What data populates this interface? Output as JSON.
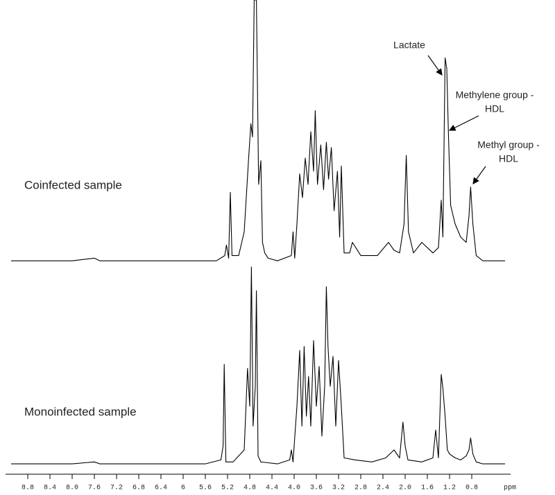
{
  "chart_data": [
    {
      "type": "line",
      "title": "Coinfected sample",
      "xlim": [
        9.2,
        0.1
      ],
      "ylim": [
        0,
        100
      ],
      "series": [
        {
          "color": "#000000",
          "x": [
            9.1,
            8.0,
            7.6,
            7.5,
            6.8,
            6.0,
            5.4,
            5.25,
            5.22,
            5.18,
            5.15,
            5.12,
            5.0,
            4.9,
            4.82,
            4.78,
            4.75,
            4.72,
            4.68,
            4.64,
            4.6,
            4.57,
            4.53,
            4.5,
            4.47,
            4.3,
            4.05,
            4.02,
            3.99,
            3.95,
            3.9,
            3.85,
            3.8,
            3.75,
            3.7,
            3.65,
            3.62,
            3.58,
            3.52,
            3.47,
            3.42,
            3.38,
            3.33,
            3.28,
            3.22,
            3.18,
            3.15,
            3.1,
            3.0,
            2.95,
            2.8,
            2.5,
            2.3,
            2.2,
            2.1,
            2.02,
            1.98,
            1.94,
            1.85,
            1.7,
            1.5,
            1.4,
            1.35,
            1.32,
            1.28,
            1.25,
            1.22,
            1.18,
            1.1,
            1.0,
            0.9,
            0.85,
            0.82,
            0.78,
            0.72,
            0.6,
            0.2
          ],
          "values": [
            1,
            1,
            2,
            1,
            1,
            1,
            1,
            3,
            7,
            2,
            27,
            3,
            3,
            12,
            40,
            53,
            48,
            100,
            100,
            30,
            39,
            8,
            4,
            3,
            2,
            1,
            3,
            12,
            2,
            15,
            34,
            25,
            40,
            30,
            50,
            35,
            58,
            30,
            45,
            28,
            46,
            32,
            44,
            20,
            35,
            10,
            37,
            4,
            4,
            8,
            3,
            3,
            8,
            5,
            4,
            15,
            41,
            12,
            4,
            8,
            4,
            6,
            24,
            10,
            78,
            74,
            49,
            22,
            15,
            10,
            8,
            18,
            29,
            15,
            3,
            1,
            1
          ]
        }
      ],
      "annotations": [
        {
          "text": [
            "Lactate"
          ]
        },
        {
          "text": [
            "Methylene group -",
            "HDL"
          ]
        },
        {
          "text": [
            "Methyl group -",
            "HDL"
          ]
        }
      ]
    },
    {
      "type": "line",
      "title": "Monoinfected sample",
      "xlim": [
        9.2,
        0.1
      ],
      "ylim": [
        0,
        100
      ],
      "x_label": "ppm",
      "xticks": [
        8.8,
        8.4,
        {
          "value": 8,
          "label": "8.0"
        },
        7.6,
        7.2,
        6.8,
        6.4,
        6.0,
        5.6,
        5.2,
        4.8,
        4.4,
        {
          "value": 4,
          "label": "4.0"
        },
        3.6,
        3.2,
        2.8,
        2.4,
        {
          "value": 2,
          "label": "2.0"
        },
        1.6,
        1.2,
        0.8
      ],
      "series": [
        {
          "color": "#000000",
          "x": [
            9.1,
            8.0,
            7.6,
            7.5,
            6.5,
            5.6,
            5.32,
            5.28,
            5.26,
            5.23,
            5.1,
            4.9,
            4.84,
            4.8,
            4.77,
            4.74,
            4.7,
            4.68,
            4.65,
            4.6,
            4.3,
            4.08,
            4.05,
            4.02,
            3.95,
            3.9,
            3.86,
            3.82,
            3.78,
            3.74,
            3.7,
            3.65,
            3.6,
            3.55,
            3.5,
            3.45,
            3.42,
            3.39,
            3.35,
            3.3,
            3.25,
            3.2,
            3.15,
            3.1,
            2.9,
            2.6,
            2.35,
            2.2,
            2.1,
            2.04,
            2.0,
            1.95,
            1.7,
            1.5,
            1.45,
            1.4,
            1.35,
            1.32,
            1.28,
            1.24,
            1.2,
            1.1,
            1.0,
            0.9,
            0.85,
            0.82,
            0.78,
            0.72,
            0.6,
            0.2
          ],
          "values": [
            1,
            1,
            2,
            1,
            1,
            1,
            3,
            10,
            51,
            2,
            2,
            8,
            49,
            30,
            100,
            20,
            40,
            88,
            5,
            2,
            1,
            3,
            8,
            2,
            30,
            58,
            20,
            60,
            25,
            45,
            20,
            63,
            30,
            50,
            15,
            40,
            90,
            60,
            40,
            55,
            20,
            53,
            30,
            4,
            3,
            2,
            4,
            8,
            4,
            22,
            10,
            3,
            2,
            4,
            18,
            4,
            46,
            39,
            25,
            8,
            6,
            4,
            3,
            5,
            8,
            14,
            6,
            2,
            1,
            1
          ]
        }
      ]
    }
  ]
}
